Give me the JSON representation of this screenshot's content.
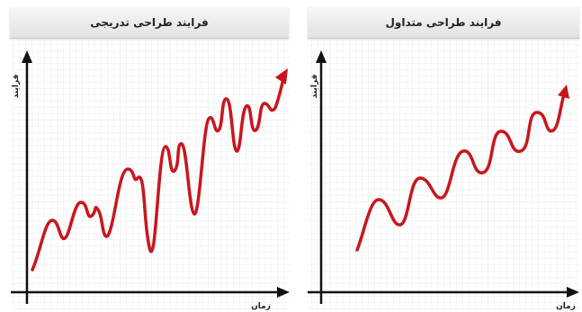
{
  "panels": {
    "left": {
      "title": "فرایند طراحی تدریجی",
      "y_label": "فرایند",
      "x_label": "زمان"
    },
    "right": {
      "title": "فرایند طراحی متداول",
      "y_label": "فرایند",
      "x_label": "زمان"
    }
  },
  "colors": {
    "curve": "#c8161d",
    "axis": "#111111",
    "grid": "#e8e8e8"
  }
}
